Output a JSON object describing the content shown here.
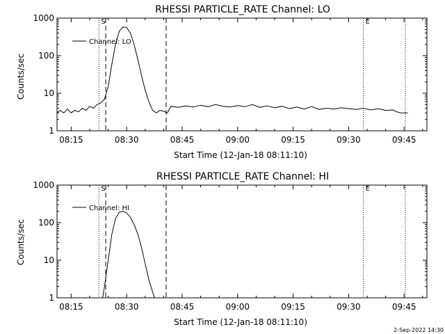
{
  "chart_data": [
    {
      "type": "line",
      "title": "RHESSI PARTICLE_RATE Channel: LO",
      "xlabel": "Start Time (12-Jan-18 08:11:10)",
      "ylabel": "Counts/sec",
      "yscale": "log",
      "ylim": [
        1,
        1000
      ],
      "xlim": [
        "08:11:10",
        "09:51:10"
      ],
      "x_ticks": [
        "08:15",
        "08:30",
        "08:45",
        "09:00",
        "09:15",
        "09:30",
        "09:45"
      ],
      "y_ticks": [
        "1",
        "10",
        "100",
        "1000"
      ],
      "legend": {
        "label": "Channel: LO",
        "placement": "top-left"
      },
      "vlines": [
        {
          "time": "08:22:30",
          "style": "dotted",
          "label": "S"
        },
        {
          "time": "08:24:20",
          "style": "dashed",
          "label": ""
        },
        {
          "time": "08:40:40",
          "style": "dashed",
          "label": ""
        },
        {
          "time": "09:34:00",
          "style": "dotted",
          "label": "E"
        },
        {
          "time": "09:45:20",
          "style": "dotted",
          "label": ""
        }
      ],
      "series": [
        {
          "name": "Channel: LO",
          "x": [
            "08:11:10",
            "08:12:00",
            "08:13:00",
            "08:14:00",
            "08:15:00",
            "08:16:00",
            "08:17:00",
            "08:18:00",
            "08:19:00",
            "08:20:00",
            "08:21:00",
            "08:22:00",
            "08:23:00",
            "08:24:00",
            "08:25:00",
            "08:26:00",
            "08:27:00",
            "08:28:00",
            "08:29:00",
            "08:30:00",
            "08:31:00",
            "08:32:00",
            "08:33:00",
            "08:34:00",
            "08:35:00",
            "08:36:00",
            "08:37:00",
            "08:38:00",
            "08:39:00",
            "08:40:00",
            "08:41:00",
            "08:42:00",
            "08:44:00",
            "08:46:00",
            "08:48:00",
            "08:50:00",
            "08:52:00",
            "08:54:00",
            "08:56:00",
            "08:58:00",
            "09:00:00",
            "09:02:00",
            "09:04:00",
            "09:06:00",
            "09:08:00",
            "09:10:00",
            "09:12:00",
            "09:14:00",
            "09:16:00",
            "09:18:00",
            "09:20:00",
            "09:22:00",
            "09:24:00",
            "09:26:00",
            "09:28:00",
            "09:30:00",
            "09:32:00",
            "09:34:00",
            "09:36:00",
            "09:38:00",
            "09:40:00",
            "09:42:00",
            "09:43:00",
            "09:44:00",
            "09:46:00"
          ],
          "values": [
            3,
            3.5,
            3,
            3.8,
            3,
            3.5,
            3.2,
            4,
            3.5,
            4.5,
            4,
            5,
            5.5,
            7,
            15,
            60,
            200,
            450,
            580,
            560,
            400,
            200,
            80,
            30,
            12,
            6,
            3.5,
            3,
            3.5,
            3.3,
            3,
            4.5,
            4.2,
            4.6,
            4.3,
            4.8,
            4.4,
            5,
            4.5,
            4.3,
            4.7,
            4.4,
            5,
            4.2,
            4.6,
            4.1,
            4.5,
            3.9,
            4.3,
            3.8,
            4.4,
            3.7,
            4,
            3.8,
            4.1,
            3.9,
            3.7,
            4,
            3.6,
            3.9,
            3.5,
            3.6,
            3.2,
            3,
            3
          ]
        }
      ]
    },
    {
      "type": "line",
      "title": "RHESSI PARTICLE_RATE Channel: HI",
      "xlabel": "Start Time (12-Jan-18 08:11:10)",
      "ylabel": "Counts/sec",
      "yscale": "log",
      "ylim": [
        1,
        1000
      ],
      "xlim": [
        "08:11:10",
        "09:51:10"
      ],
      "x_ticks": [
        "08:15",
        "08:30",
        "08:45",
        "09:00",
        "09:15",
        "09:30",
        "09:45"
      ],
      "y_ticks": [
        "1",
        "10",
        "100",
        "1000"
      ],
      "legend": {
        "label": "Channel: HI",
        "placement": "top-left"
      },
      "vlines": [
        {
          "time": "08:22:30",
          "style": "dotted",
          "label": "S"
        },
        {
          "time": "08:24:20",
          "style": "dashed",
          "label": ""
        },
        {
          "time": "08:40:40",
          "style": "dashed",
          "label": ""
        },
        {
          "time": "09:34:00",
          "style": "dotted",
          "label": "E"
        },
        {
          "time": "09:45:20",
          "style": "dotted",
          "label": ""
        }
      ],
      "series": [
        {
          "name": "Channel: HI",
          "x": [
            "08:23:30",
            "08:24:00",
            "08:25:00",
            "08:26:00",
            "08:27:00",
            "08:28:00",
            "08:29:00",
            "08:30:00",
            "08:31:00",
            "08:32:00",
            "08:33:00",
            "08:34:00",
            "08:35:00",
            "08:36:00",
            "08:37:30"
          ],
          "values": [
            1,
            2,
            10,
            50,
            130,
            190,
            200,
            180,
            140,
            90,
            50,
            22,
            8,
            3,
            1
          ]
        }
      ]
    }
  ],
  "footer": {
    "date": "2-Sep-2022 14:30"
  }
}
